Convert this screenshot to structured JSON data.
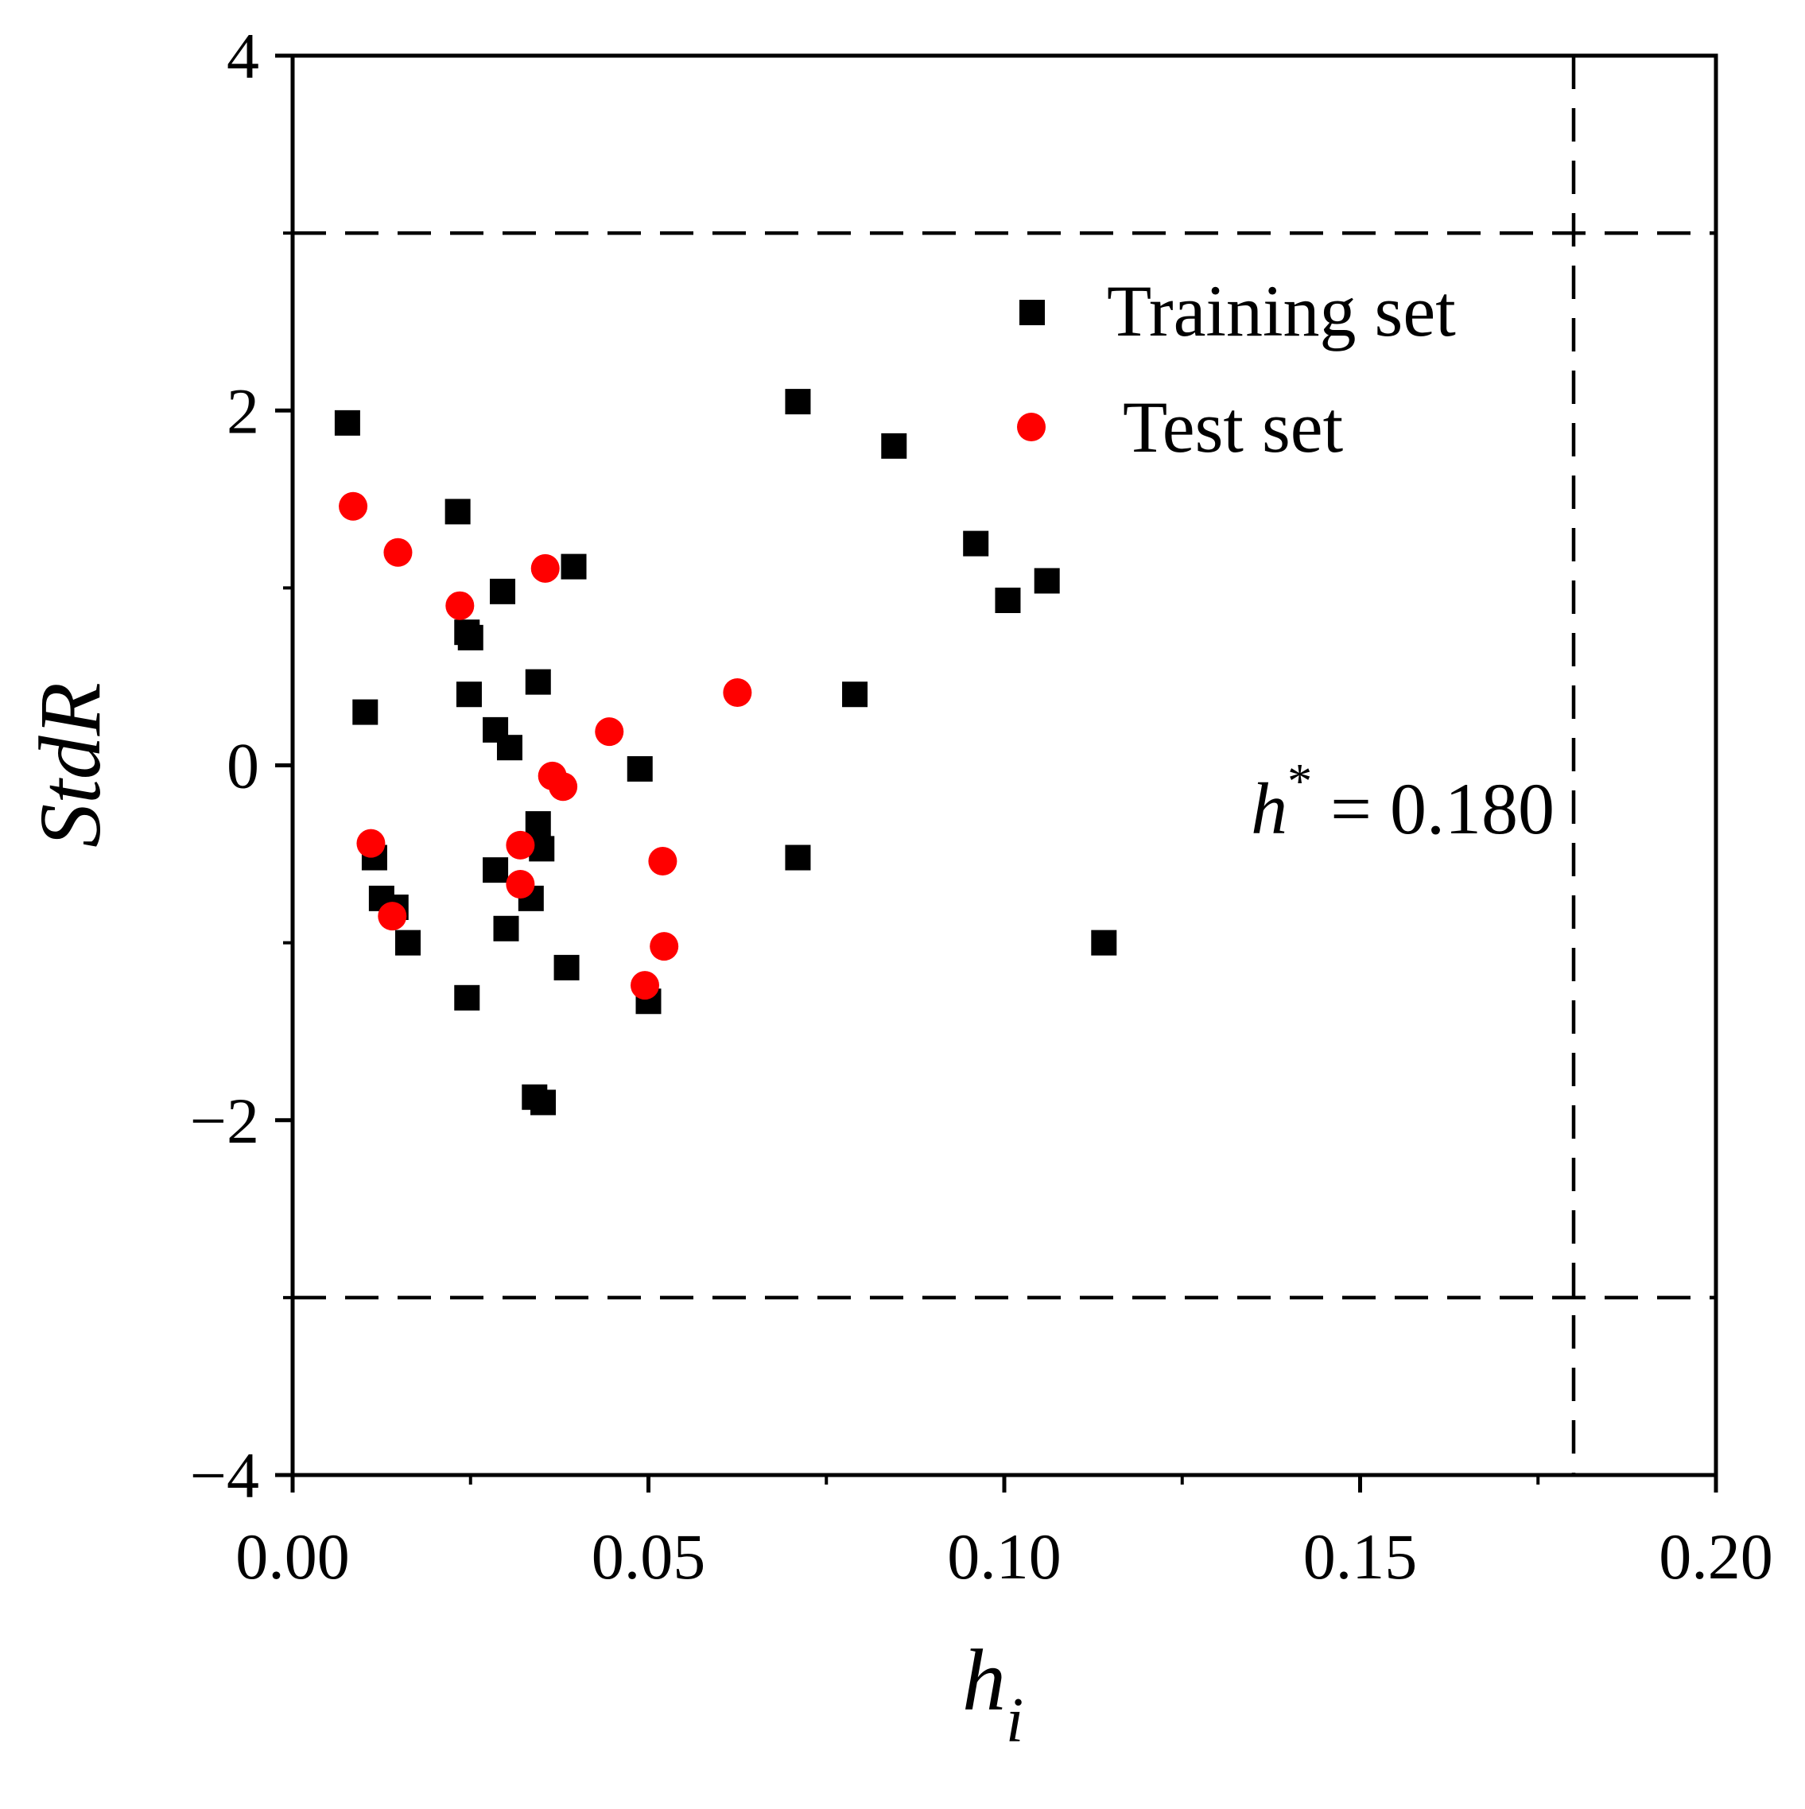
{
  "chart_data": {
    "type": "scatter",
    "title": "",
    "xlabel": "h",
    "xlabel_sub": "i",
    "ylabel": "StdR",
    "xlim": [
      0.0,
      0.2
    ],
    "ylim": [
      -4,
      4
    ],
    "x_ticks": [
      {
        "value": 0.0,
        "label": "0.00"
      },
      {
        "value": 0.05,
        "label": "0.05"
      },
      {
        "value": 0.1,
        "label": "0.10"
      },
      {
        "value": 0.15,
        "label": "0.15"
      },
      {
        "value": 0.2,
        "label": "0.20"
      }
    ],
    "x_minor_ticks": [
      0.025,
      0.075,
      0.125,
      0.175
    ],
    "y_ticks": [
      {
        "value": -4,
        "label": "−4"
      },
      {
        "value": -2,
        "label": "−2"
      },
      {
        "value": 0,
        "label": "0"
      },
      {
        "value": 2,
        "label": "2"
      },
      {
        "value": 4,
        "label": "4"
      }
    ],
    "y_minor_ticks": [
      -3,
      -1,
      1,
      3
    ],
    "reference_lines": {
      "horizontal": [
        3,
        -3
      ],
      "vertical": [
        0.18
      ]
    },
    "annotation": {
      "symbol": "h",
      "superscript": "*",
      "text": " = 0.180"
    },
    "legend": {
      "position": "top-right",
      "entries": [
        {
          "label": "Training set",
          "marker": "square",
          "color": "#000000"
        },
        {
          "label": "Test set",
          "marker": "circle",
          "color": "#ff0000"
        }
      ]
    },
    "series": [
      {
        "name": "Training set",
        "marker": "square",
        "color": "#000000",
        "points": [
          {
            "x": 0.0077,
            "y": 1.93
          },
          {
            "x": 0.0102,
            "y": 0.3
          },
          {
            "x": 0.0115,
            "y": -0.52
          },
          {
            "x": 0.0125,
            "y": -0.75
          },
          {
            "x": 0.0145,
            "y": -0.8
          },
          {
            "x": 0.0162,
            "y": -1.0
          },
          {
            "x": 0.0232,
            "y": 1.43
          },
          {
            "x": 0.0245,
            "y": 0.75
          },
          {
            "x": 0.025,
            "y": 0.72
          },
          {
            "x": 0.0248,
            "y": 0.4
          },
          {
            "x": 0.0245,
            "y": -1.31
          },
          {
            "x": 0.0285,
            "y": 0.2
          },
          {
            "x": 0.0295,
            "y": 0.98
          },
          {
            "x": 0.0305,
            "y": 0.1
          },
          {
            "x": 0.0285,
            "y": -0.59
          },
          {
            "x": 0.03,
            "y": -0.92
          },
          {
            "x": 0.0335,
            "y": -0.75
          },
          {
            "x": 0.034,
            "y": -1.87
          },
          {
            "x": 0.0345,
            "y": 0.47
          },
          {
            "x": 0.0345,
            "y": -0.33
          },
          {
            "x": 0.035,
            "y": -0.47
          },
          {
            "x": 0.0352,
            "y": -1.9
          },
          {
            "x": 0.0395,
            "y": 1.12
          },
          {
            "x": 0.0385,
            "y": -1.14
          },
          {
            "x": 0.0488,
            "y": -0.02
          },
          {
            "x": 0.05,
            "y": -1.33
          },
          {
            "x": 0.071,
            "y": 2.05
          },
          {
            "x": 0.071,
            "y": -0.52
          },
          {
            "x": 0.079,
            "y": 0.4
          },
          {
            "x": 0.0845,
            "y": 1.8
          },
          {
            "x": 0.096,
            "y": 1.25
          },
          {
            "x": 0.1005,
            "y": 0.93
          },
          {
            "x": 0.106,
            "y": 1.04
          },
          {
            "x": 0.114,
            "y": -1.0
          }
        ]
      },
      {
        "name": "Test set",
        "marker": "circle",
        "color": "#ff0000",
        "points": [
          {
            "x": 0.0085,
            "y": 1.46
          },
          {
            "x": 0.011,
            "y": -0.44
          },
          {
            "x": 0.014,
            "y": -0.85
          },
          {
            "x": 0.0148,
            "y": 1.2
          },
          {
            "x": 0.0235,
            "y": 0.9
          },
          {
            "x": 0.032,
            "y": -0.45
          },
          {
            "x": 0.032,
            "y": -0.67
          },
          {
            "x": 0.0355,
            "y": 1.11
          },
          {
            "x": 0.0365,
            "y": -0.06
          },
          {
            "x": 0.038,
            "y": -0.12
          },
          {
            "x": 0.0445,
            "y": 0.19
          },
          {
            "x": 0.0495,
            "y": -1.24
          },
          {
            "x": 0.052,
            "y": -0.54
          },
          {
            "x": 0.0522,
            "y": -1.02
          },
          {
            "x": 0.0625,
            "y": 0.41
          }
        ]
      }
    ]
  }
}
